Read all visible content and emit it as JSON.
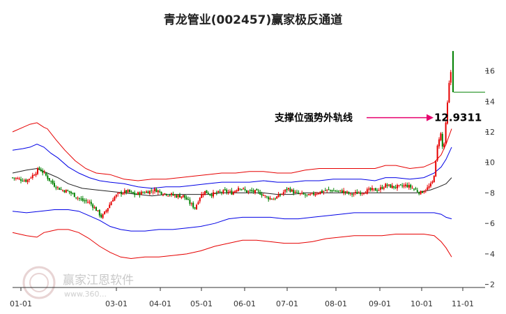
{
  "chart_data": {
    "type": "line",
    "title": "青龙管业(002457)赢家极反通道",
    "x_ticks": [
      "01-01",
      "03-01",
      "04-01",
      "05-01",
      "06-01",
      "07-01",
      "08-01",
      "09-01",
      "10-01",
      "11-01"
    ],
    "y_ticks": [
      2,
      4,
      6,
      8,
      10,
      12,
      14,
      16
    ],
    "ylim": [
      1.8,
      17.9
    ],
    "grid": false,
    "colors": {
      "up": "#e60000",
      "down": "#008000",
      "upper_outer": "#e60000",
      "upper_inner": "#0000e6",
      "middle": "#222222",
      "lower_inner": "#0000e6",
      "lower_outer": "#e60000",
      "annotation_arrow": "#e6006e",
      "last_price_line": "#008000"
    },
    "series": [
      {
        "color": "#e60000",
        "points": [
          [
            0,
            12.0
          ],
          [
            15,
            12.3
          ],
          [
            25,
            12.5
          ],
          [
            35,
            12.6
          ],
          [
            45,
            12.3
          ],
          [
            50,
            12.2
          ],
          [
            62,
            11.5
          ],
          [
            75,
            10.8
          ],
          [
            90,
            10.1
          ],
          [
            105,
            9.6
          ],
          [
            120,
            9.3
          ],
          [
            140,
            9.2
          ],
          [
            160,
            8.9
          ],
          [
            180,
            8.8
          ],
          [
            200,
            8.9
          ],
          [
            220,
            8.9
          ],
          [
            240,
            9.0
          ],
          [
            260,
            9.1
          ],
          [
            280,
            9.2
          ],
          [
            300,
            9.3
          ],
          [
            320,
            9.3
          ],
          [
            340,
            9.4
          ],
          [
            360,
            9.4
          ],
          [
            380,
            9.3
          ],
          [
            400,
            9.3
          ],
          [
            420,
            9.5
          ],
          [
            440,
            9.6
          ],
          [
            460,
            9.6
          ],
          [
            480,
            9.6
          ],
          [
            500,
            9.6
          ],
          [
            520,
            9.6
          ],
          [
            535,
            9.8
          ],
          [
            550,
            9.8
          ],
          [
            570,
            9.6
          ],
          [
            590,
            9.7
          ],
          [
            605,
            10.0
          ],
          [
            615,
            10.5
          ],
          [
            622,
            11.2
          ],
          [
            630,
            12.2
          ]
        ]
      },
      {
        "color": "#0000e6",
        "points": [
          [
            0,
            10.8
          ],
          [
            15,
            10.9
          ],
          [
            25,
            11.0
          ],
          [
            35,
            11.2
          ],
          [
            45,
            11.0
          ],
          [
            55,
            10.6
          ],
          [
            65,
            10.3
          ],
          [
            80,
            9.7
          ],
          [
            95,
            9.3
          ],
          [
            110,
            9.0
          ],
          [
            125,
            8.8
          ],
          [
            140,
            8.7
          ],
          [
            160,
            8.6
          ],
          [
            180,
            8.4
          ],
          [
            200,
            8.3
          ],
          [
            220,
            8.4
          ],
          [
            240,
            8.4
          ],
          [
            260,
            8.5
          ],
          [
            280,
            8.6
          ],
          [
            300,
            8.7
          ],
          [
            320,
            8.7
          ],
          [
            340,
            8.7
          ],
          [
            360,
            8.8
          ],
          [
            380,
            8.7
          ],
          [
            400,
            8.7
          ],
          [
            420,
            8.8
          ],
          [
            440,
            8.8
          ],
          [
            460,
            8.9
          ],
          [
            480,
            8.9
          ],
          [
            500,
            8.9
          ],
          [
            520,
            8.8
          ],
          [
            535,
            9.0
          ],
          [
            550,
            9.0
          ],
          [
            570,
            8.9
          ],
          [
            590,
            9.0
          ],
          [
            605,
            9.3
          ],
          [
            615,
            9.7
          ],
          [
            622,
            10.2
          ],
          [
            630,
            11.0
          ]
        ]
      },
      {
        "color": "#222222",
        "points": [
          [
            0,
            9.3
          ],
          [
            20,
            9.5
          ],
          [
            35,
            9.6
          ],
          [
            50,
            9.3
          ],
          [
            65,
            9.0
          ],
          [
            80,
            8.6
          ],
          [
            100,
            8.3
          ],
          [
            120,
            8.2
          ],
          [
            140,
            8.1
          ],
          [
            160,
            8.0
          ],
          [
            180,
            7.9
          ],
          [
            200,
            7.8
          ],
          [
            220,
            7.9
          ],
          [
            240,
            7.9
          ],
          [
            260,
            7.9
          ],
          [
            280,
            7.9
          ],
          [
            300,
            8.0
          ],
          [
            320,
            8.0
          ],
          [
            340,
            8.0
          ],
          [
            360,
            8.0
          ],
          [
            380,
            7.9
          ],
          [
            400,
            7.9
          ],
          [
            420,
            8.0
          ],
          [
            440,
            8.0
          ],
          [
            460,
            8.0
          ],
          [
            480,
            8.0
          ],
          [
            500,
            8.0
          ],
          [
            520,
            8.0
          ],
          [
            540,
            8.0
          ],
          [
            560,
            8.0
          ],
          [
            580,
            8.0
          ],
          [
            600,
            8.2
          ],
          [
            612,
            8.4
          ],
          [
            622,
            8.6
          ],
          [
            630,
            9.0
          ]
        ]
      },
      {
        "color": "#0000e6",
        "points": [
          [
            0,
            6.8
          ],
          [
            20,
            6.7
          ],
          [
            40,
            6.8
          ],
          [
            60,
            6.9
          ],
          [
            80,
            6.9
          ],
          [
            95,
            6.8
          ],
          [
            110,
            6.5
          ],
          [
            125,
            6.2
          ],
          [
            140,
            5.8
          ],
          [
            155,
            5.6
          ],
          [
            170,
            5.5
          ],
          [
            190,
            5.5
          ],
          [
            210,
            5.6
          ],
          [
            230,
            5.6
          ],
          [
            250,
            5.7
          ],
          [
            270,
            5.8
          ],
          [
            290,
            6.0
          ],
          [
            310,
            6.3
          ],
          [
            330,
            6.4
          ],
          [
            350,
            6.4
          ],
          [
            370,
            6.4
          ],
          [
            390,
            6.3
          ],
          [
            410,
            6.3
          ],
          [
            430,
            6.4
          ],
          [
            450,
            6.5
          ],
          [
            470,
            6.6
          ],
          [
            490,
            6.7
          ],
          [
            510,
            6.7
          ],
          [
            530,
            6.7
          ],
          [
            550,
            6.7
          ],
          [
            570,
            6.7
          ],
          [
            590,
            6.7
          ],
          [
            605,
            6.7
          ],
          [
            615,
            6.6
          ],
          [
            622,
            6.4
          ],
          [
            630,
            6.3
          ]
        ]
      },
      {
        "color": "#e60000",
        "points": [
          [
            0,
            5.4
          ],
          [
            20,
            5.2
          ],
          [
            35,
            5.1
          ],
          [
            45,
            5.4
          ],
          [
            55,
            5.5
          ],
          [
            65,
            5.6
          ],
          [
            80,
            5.6
          ],
          [
            95,
            5.4
          ],
          [
            110,
            5.0
          ],
          [
            125,
            4.5
          ],
          [
            140,
            4.1
          ],
          [
            155,
            3.8
          ],
          [
            170,
            3.7
          ],
          [
            190,
            3.8
          ],
          [
            210,
            3.8
          ],
          [
            230,
            3.9
          ],
          [
            250,
            4.0
          ],
          [
            270,
            4.2
          ],
          [
            290,
            4.5
          ],
          [
            310,
            4.7
          ],
          [
            330,
            4.9
          ],
          [
            350,
            4.9
          ],
          [
            370,
            4.8
          ],
          [
            390,
            4.7
          ],
          [
            410,
            4.7
          ],
          [
            430,
            4.8
          ],
          [
            450,
            5.0
          ],
          [
            470,
            5.1
          ],
          [
            490,
            5.2
          ],
          [
            510,
            5.2
          ],
          [
            530,
            5.2
          ],
          [
            550,
            5.3
          ],
          [
            570,
            5.3
          ],
          [
            590,
            5.3
          ],
          [
            605,
            5.2
          ],
          [
            615,
            4.8
          ],
          [
            622,
            4.4
          ],
          [
            630,
            3.8
          ]
        ]
      }
    ],
    "price_line": [
      [
        0,
        9.0
      ],
      [
        10,
        8.9
      ],
      [
        20,
        8.8
      ],
      [
        30,
        9.2
      ],
      [
        38,
        9.6
      ],
      [
        45,
        9.3
      ],
      [
        52,
        8.9
      ],
      [
        60,
        8.5
      ],
      [
        70,
        8.2
      ],
      [
        80,
        8.1
      ],
      [
        90,
        7.8
      ],
      [
        100,
        7.5
      ],
      [
        110,
        7.4
      ],
      [
        120,
        6.9
      ],
      [
        128,
        6.4
      ],
      [
        135,
        6.9
      ],
      [
        145,
        7.7
      ],
      [
        155,
        8.0
      ],
      [
        165,
        8.1
      ],
      [
        175,
        7.9
      ],
      [
        185,
        8.0
      ],
      [
        195,
        8.1
      ],
      [
        205,
        8.2
      ],
      [
        215,
        8.0
      ],
      [
        225,
        7.9
      ],
      [
        235,
        7.8
      ],
      [
        245,
        7.8
      ],
      [
        255,
        7.3
      ],
      [
        262,
        7.0
      ],
      [
        268,
        7.7
      ],
      [
        275,
        8.1
      ],
      [
        285,
        7.9
      ],
      [
        295,
        8.0
      ],
      [
        305,
        8.1
      ],
      [
        315,
        8.0
      ],
      [
        325,
        8.4
      ],
      [
        335,
        8.1
      ],
      [
        345,
        8.1
      ],
      [
        355,
        8.0
      ],
      [
        365,
        7.7
      ],
      [
        375,
        7.6
      ],
      [
        385,
        7.9
      ],
      [
        395,
        8.3
      ],
      [
        405,
        8.0
      ],
      [
        415,
        7.9
      ],
      [
        425,
        7.8
      ],
      [
        435,
        8.0
      ],
      [
        445,
        8.1
      ],
      [
        455,
        8.2
      ],
      [
        465,
        8.1
      ],
      [
        475,
        8.1
      ],
      [
        485,
        7.9
      ],
      [
        495,
        8.0
      ],
      [
        505,
        8.1
      ],
      [
        515,
        8.2
      ],
      [
        525,
        8.2
      ],
      [
        535,
        8.5
      ],
      [
        545,
        8.4
      ],
      [
        555,
        8.4
      ],
      [
        565,
        8.5
      ],
      [
        575,
        8.3
      ],
      [
        585,
        8.0
      ],
      [
        595,
        8.3
      ],
      [
        602,
        8.6
      ],
      [
        606,
        9.5
      ],
      [
        610,
        11.2
      ],
      [
        614,
        12.0
      ],
      [
        618,
        10.6
      ],
      [
        622,
        12.7
      ],
      [
        626,
        15.0
      ],
      [
        629,
        16.0
      ]
    ],
    "last_price": 14.6,
    "annotation": {
      "text": "支撑位强势外轨线",
      "value": "12.9311",
      "y": 12.9311
    },
    "watermark": {
      "text": "赢家江恩软件",
      "url": "www.360..."
    }
  }
}
